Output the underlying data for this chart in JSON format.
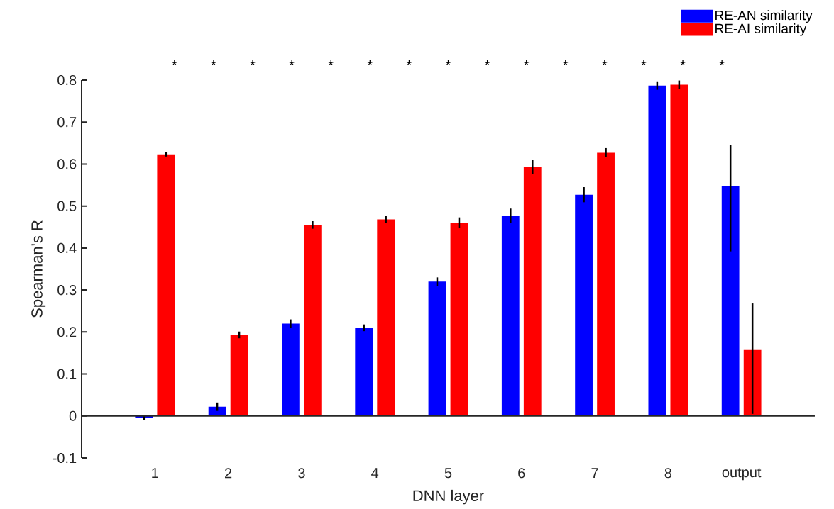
{
  "chart_data": {
    "type": "bar",
    "xlabel": "DNN layer",
    "ylabel": "Spearman's R",
    "categories": [
      "1",
      "2",
      "3",
      "4",
      "5",
      "6",
      "7",
      "8",
      "output"
    ],
    "series": [
      {
        "name": "RE-AN similarity",
        "color": "#0000ff",
        "values": [
          -0.005,
          0.022,
          0.22,
          0.21,
          0.32,
          0.477,
          0.527,
          0.787,
          0.547
        ],
        "errors": [
          0.005,
          0.01,
          0.01,
          0.008,
          0.01,
          0.017,
          0.018,
          0.01,
          [
            0.392,
            0.645
          ]
        ]
      },
      {
        "name": "RE-AI similarity",
        "color": "#ff0000",
        "values": [
          0.623,
          0.193,
          0.455,
          0.468,
          0.46,
          0.593,
          0.627,
          0.789,
          0.157
        ],
        "errors": [
          0.005,
          0.008,
          0.009,
          0.008,
          0.013,
          0.017,
          0.011,
          0.01,
          [
            0.005,
            0.268
          ]
        ]
      }
    ],
    "annotations": [
      "*",
      "*",
      "*",
      "*",
      "*",
      "*",
      "*",
      "*",
      "*",
      "*",
      "*",
      "*",
      "*",
      "*",
      "*"
    ],
    "ylim": [
      -0.1,
      0.8
    ],
    "yticks": [
      -0.1,
      0,
      0.1,
      0.2,
      0.3,
      0.4,
      0.5,
      0.6,
      0.7,
      0.8
    ],
    "legend": "top right"
  }
}
